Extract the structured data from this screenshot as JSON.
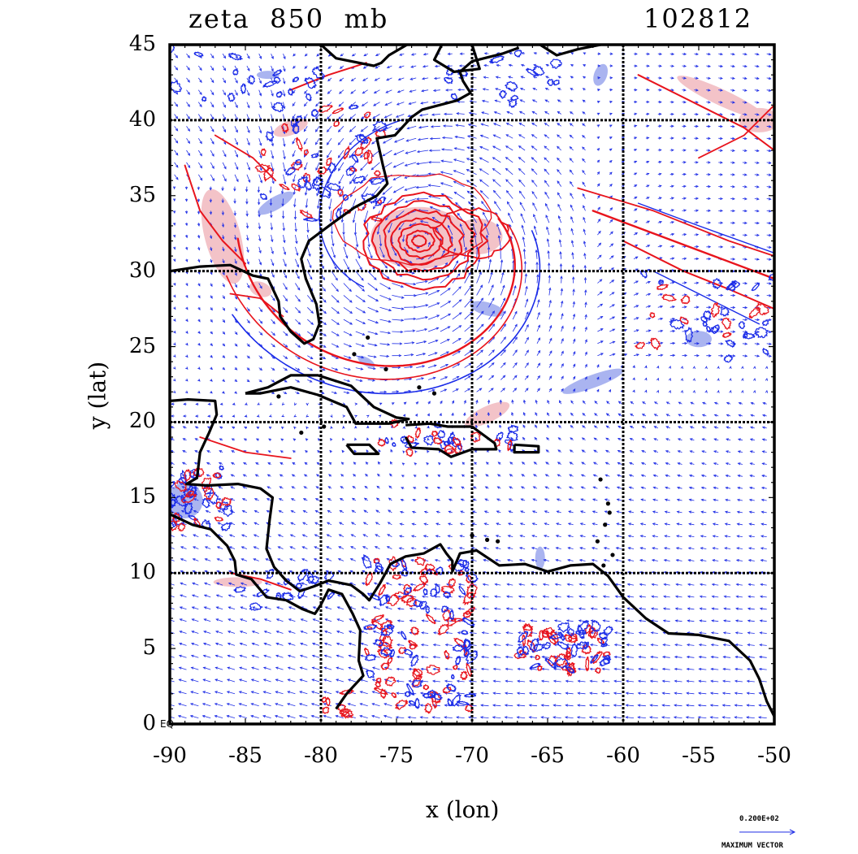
{
  "title": {
    "field": "zeta  850  mb",
    "timestamp": "102812"
  },
  "axes": {
    "xlabel": "x (lon)",
    "ylabel": "y (lat)",
    "x_ticks": [
      "-90",
      "-85",
      "-80",
      "-75",
      "-70",
      "-65",
      "-60",
      "-55",
      "-50"
    ],
    "y_ticks": [
      "45",
      "40",
      "35",
      "30",
      "25",
      "20",
      "15",
      "10",
      "5",
      "0"
    ],
    "x_range": [
      -90,
      -50
    ],
    "y_range": [
      0,
      45
    ],
    "equator_label": "EQ",
    "grid_lon": [
      -80,
      -70,
      -60
    ],
    "grid_lat": [
      10,
      20,
      30,
      40
    ]
  },
  "vector_legend": {
    "max_value": "0.200E+02",
    "label": "MAXIMUM VECTOR"
  },
  "colors": {
    "positive_vorticity": "#e8141c",
    "positive_fill": "#f3c3c8",
    "negative_vorticity": "#1a2be8",
    "negative_fill": "#aab4f0",
    "vectors": "#1f2ee6",
    "coast": "#000000"
  },
  "features": {
    "cyclone_center": {
      "lon": -73.5,
      "lat": 32
    },
    "coastlines": [
      [
        [
          -90,
          30
        ],
        [
          -88,
          30.3
        ],
        [
          -86,
          30.4
        ],
        [
          -84.5,
          29.7
        ],
        [
          -83.5,
          29.5
        ],
        [
          -82.8,
          28
        ],
        [
          -82.7,
          27
        ],
        [
          -82,
          26
        ],
        [
          -81.1,
          25.2
        ],
        [
          -80.5,
          25.5
        ],
        [
          -80.1,
          26.5
        ],
        [
          -80.3,
          27.8
        ],
        [
          -81,
          29.5
        ],
        [
          -81.3,
          30.8
        ],
        [
          -80.8,
          32
        ],
        [
          -79.2,
          33.2
        ],
        [
          -77.8,
          34.2
        ],
        [
          -76.3,
          35
        ],
        [
          -75.6,
          35.8
        ],
        [
          -75.9,
          37
        ],
        [
          -76.3,
          38.8
        ],
        [
          -75.1,
          39
        ],
        [
          -74,
          40.2
        ],
        [
          -73.3,
          40.7
        ],
        [
          -71,
          41.3
        ],
        [
          -70.1,
          41.8
        ],
        [
          -70.6,
          42.6
        ],
        [
          -70.8,
          43.2
        ],
        [
          -70,
          43.9
        ],
        [
          -68,
          44.4
        ],
        [
          -66.9,
          44.8
        ]
      ],
      [
        [
          -80,
          45
        ],
        [
          -79,
          44.1
        ],
        [
          -76.5,
          43.6
        ],
        [
          -76,
          43.8
        ],
        [
          -75.5,
          44.3
        ],
        [
          -74.3,
          45
        ]
      ],
      [
        [
          -70,
          45
        ],
        [
          -69.5,
          43.4
        ],
        [
          -71.2,
          43.2
        ],
        [
          -72.5,
          44
        ],
        [
          -72,
          45
        ]
      ],
      [
        [
          -65.5,
          45
        ],
        [
          -64.4,
          44.3
        ],
        [
          -63,
          44.7
        ],
        [
          -61.5,
          45
        ]
      ],
      [
        [
          -90,
          21.4
        ],
        [
          -88.8,
          21.5
        ],
        [
          -87,
          21.4
        ],
        [
          -86.9,
          20.5
        ],
        [
          -87.4,
          19.3
        ],
        [
          -88,
          18
        ],
        [
          -88.2,
          16.3
        ],
        [
          -88.9,
          15.9
        ],
        [
          -87.5,
          15.8
        ],
        [
          -85.5,
          15.9
        ],
        [
          -84,
          15.6
        ],
        [
          -83.2,
          15
        ],
        [
          -83.4,
          13.5
        ],
        [
          -83.6,
          11.6
        ],
        [
          -83.1,
          10.4
        ],
        [
          -82.3,
          9.5
        ],
        [
          -81.4,
          8.8
        ],
        [
          -80.5,
          9.1
        ],
        [
          -79.5,
          9.5
        ],
        [
          -78,
          9.2
        ],
        [
          -77.2,
          8.6
        ],
        [
          -76.8,
          8.2
        ],
        [
          -76.1,
          9.3
        ],
        [
          -75.4,
          10.6
        ],
        [
          -74.4,
          11.1
        ],
        [
          -73.2,
          11.3
        ],
        [
          -72.1,
          11.9
        ],
        [
          -71.7,
          11.3
        ],
        [
          -71.3,
          10.8
        ],
        [
          -71.3,
          10.1
        ],
        [
          -70.8,
          11.3
        ],
        [
          -69.7,
          11.5
        ],
        [
          -68.2,
          10.5
        ],
        [
          -66.5,
          10.6
        ],
        [
          -65,
          10.1
        ],
        [
          -63.5,
          10.5
        ],
        [
          -62,
          10.6
        ],
        [
          -61,
          9.8
        ],
        [
          -60,
          8.4
        ],
        [
          -58.5,
          7
        ],
        [
          -57,
          6
        ],
        [
          -55,
          5.9
        ],
        [
          -53,
          5.5
        ],
        [
          -51.6,
          4.2
        ],
        [
          -51,
          3
        ],
        [
          -50.5,
          1.5
        ],
        [
          -50,
          0.5
        ]
      ],
      [
        [
          -90,
          13.9
        ],
        [
          -88.5,
          13.2
        ],
        [
          -87.3,
          12.9
        ],
        [
          -86.2,
          11.8
        ],
        [
          -85.7,
          10.8
        ],
        [
          -85.6,
          9.9
        ],
        [
          -84.6,
          9.6
        ],
        [
          -83.6,
          8.4
        ],
        [
          -82.3,
          8.2
        ],
        [
          -81.2,
          7.6
        ],
        [
          -80.4,
          7.3
        ],
        [
          -80,
          7.9
        ],
        [
          -79.5,
          8.9
        ],
        [
          -78.6,
          8.6
        ],
        [
          -77.9,
          7.3
        ],
        [
          -77.4,
          6.2
        ],
        [
          -77.5,
          4.2
        ],
        [
          -77.2,
          3.2
        ],
        [
          -78.3,
          2
        ],
        [
          -79,
          1
        ]
      ],
      [
        [
          -85,
          21.9
        ],
        [
          -83.5,
          22.3
        ],
        [
          -82,
          23.1
        ],
        [
          -80.2,
          23.1
        ],
        [
          -78,
          22.4
        ],
        [
          -76.5,
          21
        ],
        [
          -75,
          20.3
        ],
        [
          -74.2,
          20.2
        ],
        [
          -75.5,
          19.9
        ],
        [
          -77.7,
          19.9
        ],
        [
          -78.3,
          21
        ],
        [
          -80.2,
          21.8
        ],
        [
          -82,
          22.3
        ],
        [
          -84,
          21.9
        ],
        [
          -85,
          21.9
        ]
      ],
      [
        [
          -74.4,
          19.8
        ],
        [
          -72.8,
          19.9
        ],
        [
          -71.6,
          19.7
        ],
        [
          -70,
          19.7
        ],
        [
          -68.5,
          18.6
        ],
        [
          -68.4,
          18.2
        ],
        [
          -70,
          18.2
        ],
        [
          -71.4,
          17.7
        ],
        [
          -72.2,
          18.2
        ],
        [
          -74,
          18.3
        ],
        [
          -74.4,
          19
        ]
      ],
      [
        [
          -78.3,
          18.5
        ],
        [
          -76.8,
          18.5
        ],
        [
          -76.2,
          17.9
        ],
        [
          -77.8,
          17.9
        ],
        [
          -78.3,
          18.5
        ]
      ],
      [
        [
          -67.2,
          18.5
        ],
        [
          -65.6,
          18.4
        ],
        [
          -65.6,
          18
        ],
        [
          -67.2,
          18
        ],
        [
          -67.2,
          18.5
        ]
      ]
    ],
    "small_islands": [
      [
        -61.5,
        16.2
      ],
      [
        -61,
        14.6
      ],
      [
        -60.9,
        14
      ],
      [
        -61.2,
        13.2
      ],
      [
        -61.7,
        12.1
      ],
      [
        -61.3,
        10.5
      ],
      [
        -60.7,
        11.2
      ],
      [
        -69,
        12.2
      ],
      [
        -68.3,
        12.1
      ],
      [
        -70,
        12.5
      ],
      [
        -76.9,
        25.6
      ],
      [
        -77.8,
        24.5
      ],
      [
        -75.7,
        23.5
      ],
      [
        -73.5,
        22.3
      ],
      [
        -72.5,
        21.9
      ],
      [
        -81.3,
        19.3
      ],
      [
        -79.8,
        19.7
      ],
      [
        -82.8,
        21.7
      ]
    ]
  }
}
